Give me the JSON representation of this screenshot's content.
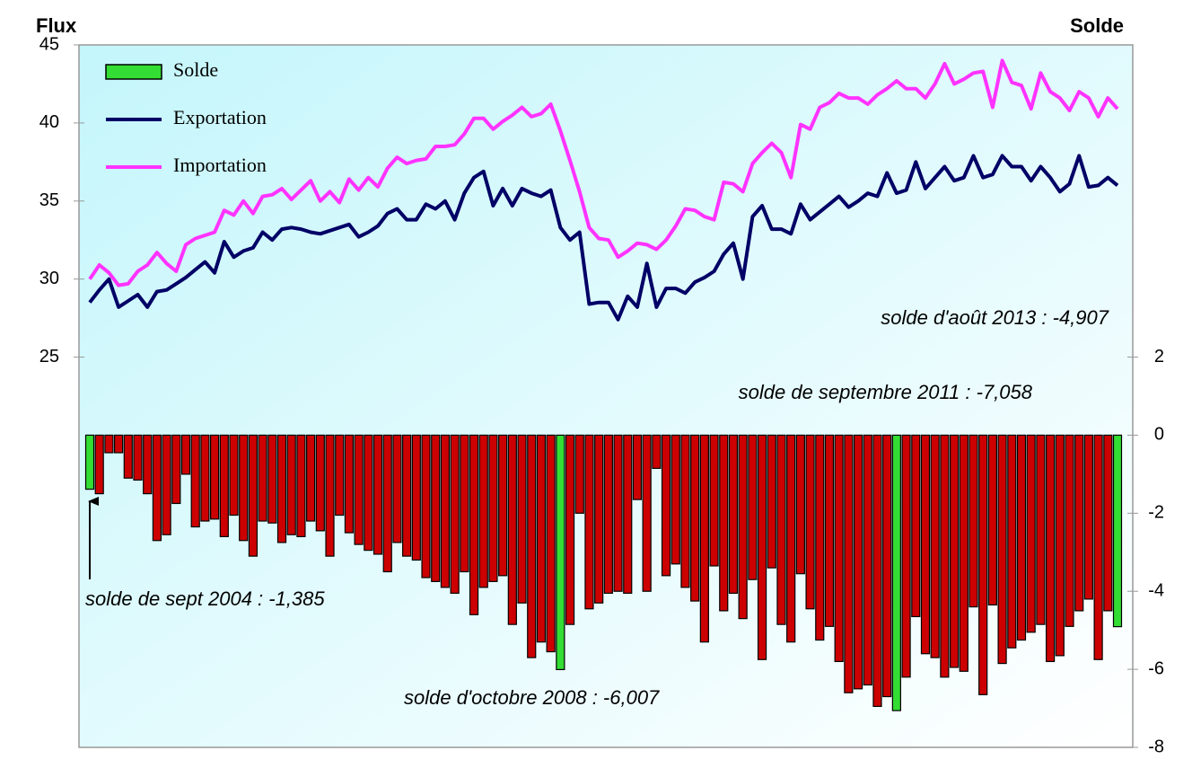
{
  "chart_data": {
    "type": "combo",
    "axis_titles": {
      "y": "Flux",
      "y2": "Solde"
    },
    "ylim": [
      0,
      45
    ],
    "yticks": [
      25,
      30,
      35,
      40,
      45
    ],
    "y2lim": [
      -8,
      10
    ],
    "y2ticks": [
      -8,
      -6,
      -4,
      -2,
      0,
      2
    ],
    "legend": "upper left",
    "series": [
      {
        "name": "Solde",
        "type": "bar",
        "axis": "y2",
        "color": "#33dd33",
        "colors": [
          "#33dd33",
          "#cc0000",
          "#cc0000",
          "#cc0000",
          "#cc0000",
          "#cc0000",
          "#cc0000",
          "#cc0000",
          "#cc0000",
          "#cc0000",
          "#cc0000",
          "#cc0000",
          "#cc0000",
          "#cc0000",
          "#cc0000",
          "#cc0000",
          "#cc0000",
          "#cc0000",
          "#cc0000",
          "#cc0000",
          "#cc0000",
          "#cc0000",
          "#cc0000",
          "#cc0000",
          "#cc0000",
          "#cc0000",
          "#cc0000",
          "#cc0000",
          "#cc0000",
          "#cc0000",
          "#cc0000",
          "#cc0000",
          "#cc0000",
          "#cc0000",
          "#cc0000",
          "#cc0000",
          "#cc0000",
          "#cc0000",
          "#cc0000",
          "#cc0000",
          "#cc0000",
          "#cc0000",
          "#cc0000",
          "#cc0000",
          "#cc0000",
          "#cc0000",
          "#cc0000",
          "#cc0000",
          "#cc0000",
          "#33dd33",
          "#cc0000",
          "#cc0000",
          "#cc0000",
          "#cc0000",
          "#cc0000",
          "#cc0000",
          "#cc0000",
          "#cc0000",
          "#cc0000",
          "#cc0000",
          "#cc0000",
          "#cc0000",
          "#cc0000",
          "#cc0000",
          "#cc0000",
          "#cc0000",
          "#cc0000",
          "#cc0000",
          "#cc0000",
          "#cc0000",
          "#cc0000",
          "#cc0000",
          "#cc0000",
          "#cc0000",
          "#cc0000",
          "#cc0000",
          "#cc0000",
          "#cc0000",
          "#cc0000",
          "#cc0000",
          "#cc0000",
          "#cc0000",
          "#cc0000",
          "#cc0000",
          "#33dd33",
          "#cc0000",
          "#cc0000",
          "#cc0000",
          "#cc0000",
          "#cc0000",
          "#cc0000",
          "#cc0000",
          "#cc0000",
          "#cc0000",
          "#cc0000",
          "#cc0000",
          "#cc0000",
          "#cc0000",
          "#cc0000",
          "#cc0000",
          "#cc0000",
          "#cc0000",
          "#cc0000",
          "#cc0000",
          "#cc0000",
          "#cc0000",
          "#cc0000",
          "#33dd33"
        ],
        "values": [
          -1.385,
          -1.5,
          -0.45,
          -0.45,
          -1.1,
          -1.15,
          -1.5,
          -2.7,
          -2.55,
          -1.75,
          -1,
          -2.35,
          -2.2,
          -2.15,
          -2.6,
          -2.05,
          -2.7,
          -3.1,
          -2.2,
          -2.25,
          -2.75,
          -2.55,
          -2.6,
          -2.2,
          -2.45,
          -3.1,
          -2.05,
          -2.5,
          -2.8,
          -2.95,
          -3.05,
          -3.5,
          -2.75,
          -3.1,
          -3.2,
          -3.65,
          -3.75,
          -3.9,
          -4.05,
          -3.5,
          -4.6,
          -3.9,
          -3.75,
          -3.6,
          -4.85,
          -4.3,
          -5.7,
          -5.3,
          -5.55,
          -6.007,
          -4.85,
          -2,
          -4.45,
          -4.3,
          -4.05,
          -4,
          -4.05,
          -1.65,
          -4,
          -0.85,
          -3.6,
          -3.3,
          -3.9,
          -4.25,
          -5.3,
          -3.35,
          -4.5,
          -4.05,
          -4.7,
          -3.7,
          -5.75,
          -3.4,
          -4.85,
          -5.3,
          -3.55,
          -4.45,
          -5.25,
          -4.9,
          -5.8,
          -6.6,
          -6.5,
          -6.4,
          -6.95,
          -6.7,
          -7.058,
          -6.2,
          -4.65,
          -5.6,
          -5.7,
          -6.2,
          -5.95,
          -6.05,
          -4.4,
          -6.65,
          -4.35,
          -5.85,
          -5.45,
          -5.25,
          -5.05,
          -4.85,
          -5.8,
          -5.65,
          -4.9,
          -4.5,
          -4.2,
          -5.75,
          -4.5,
          -4.907
        ]
      },
      {
        "name": "Exportation",
        "type": "line",
        "color": "#000066",
        "values": [
          28.5,
          29.3,
          30,
          28.2,
          28.6,
          29,
          28.2,
          29.2,
          29.3,
          29.7,
          30.1,
          30.6,
          31.1,
          30.4,
          32.4,
          31.4,
          31.8,
          32,
          33,
          32.5,
          33.2,
          33.3,
          33.2,
          33,
          32.9,
          33.1,
          33.3,
          33.5,
          32.7,
          33,
          33.4,
          34.2,
          34.5,
          33.8,
          33.8,
          34.8,
          34.5,
          35,
          33.8,
          35.5,
          36.5,
          36.9,
          34.7,
          35.8,
          34.7,
          35.8,
          35.5,
          35.3,
          35.7,
          33.3,
          32.5,
          33,
          28.4,
          28.5,
          28.5,
          27.4,
          28.9,
          28.2,
          31,
          28.2,
          29.4,
          29.4,
          29.1,
          29.8,
          30.1,
          30.5,
          31.6,
          32.3,
          30,
          34,
          34.7,
          33.2,
          33.2,
          32.9,
          34.8,
          33.8,
          34.3,
          34.8,
          35.3,
          34.6,
          35,
          35.5,
          35.3,
          36.8,
          35.5,
          35.7,
          37.5,
          35.8,
          36.5,
          37.2,
          36.3,
          36.5,
          37.9,
          36.5,
          36.7,
          37.9,
          37.2,
          37.2,
          36.3,
          37.2,
          36.5,
          35.6,
          36.1,
          37.9,
          35.9,
          36,
          36.5,
          36
        ]
      },
      {
        "name": "Importation",
        "type": "line",
        "color": "#ff33ff",
        "values": [
          30,
          30.9,
          30.4,
          29.6,
          29.7,
          30.5,
          30.9,
          31.7,
          31,
          30.5,
          32.2,
          32.6,
          32.8,
          33,
          34.4,
          34.1,
          35,
          34.2,
          35.3,
          35.4,
          35.8,
          35.1,
          35.7,
          36.3,
          35,
          35.6,
          34.9,
          36.4,
          35.7,
          36.5,
          35.9,
          37.1,
          37.8,
          37.4,
          37.6,
          37.7,
          38.5,
          38.5,
          38.6,
          39.3,
          40.3,
          40.3,
          39.6,
          40.1,
          40.5,
          41,
          40.4,
          40.6,
          41.2,
          39.5,
          37.6,
          35.6,
          33.3,
          32.6,
          32.5,
          31.4,
          31.8,
          32.3,
          32.2,
          31.9,
          32.5,
          33.4,
          34.5,
          34.4,
          34,
          33.8,
          36.2,
          36.1,
          35.6,
          37.4,
          38.1,
          38.7,
          38.1,
          36.5,
          39.9,
          39.6,
          41,
          41.3,
          41.9,
          41.6,
          41.6,
          41.2,
          41.8,
          42.2,
          42.7,
          42.2,
          42.2,
          41.6,
          42.5,
          43.8,
          42.5,
          42.8,
          43.2,
          43.3,
          41,
          44,
          42.6,
          42.4,
          40.9,
          43.2,
          42,
          41.6,
          40.8,
          42,
          41.6,
          40.4,
          41.6,
          40.9
        ]
      }
    ],
    "annotations": [
      "solde d'août 2013 : -4,907",
      "solde de septembre 2011 : -7,058",
      "solde de sept 2004 : -1,385",
      "solde d'octobre 2008 : -6,007"
    ]
  }
}
